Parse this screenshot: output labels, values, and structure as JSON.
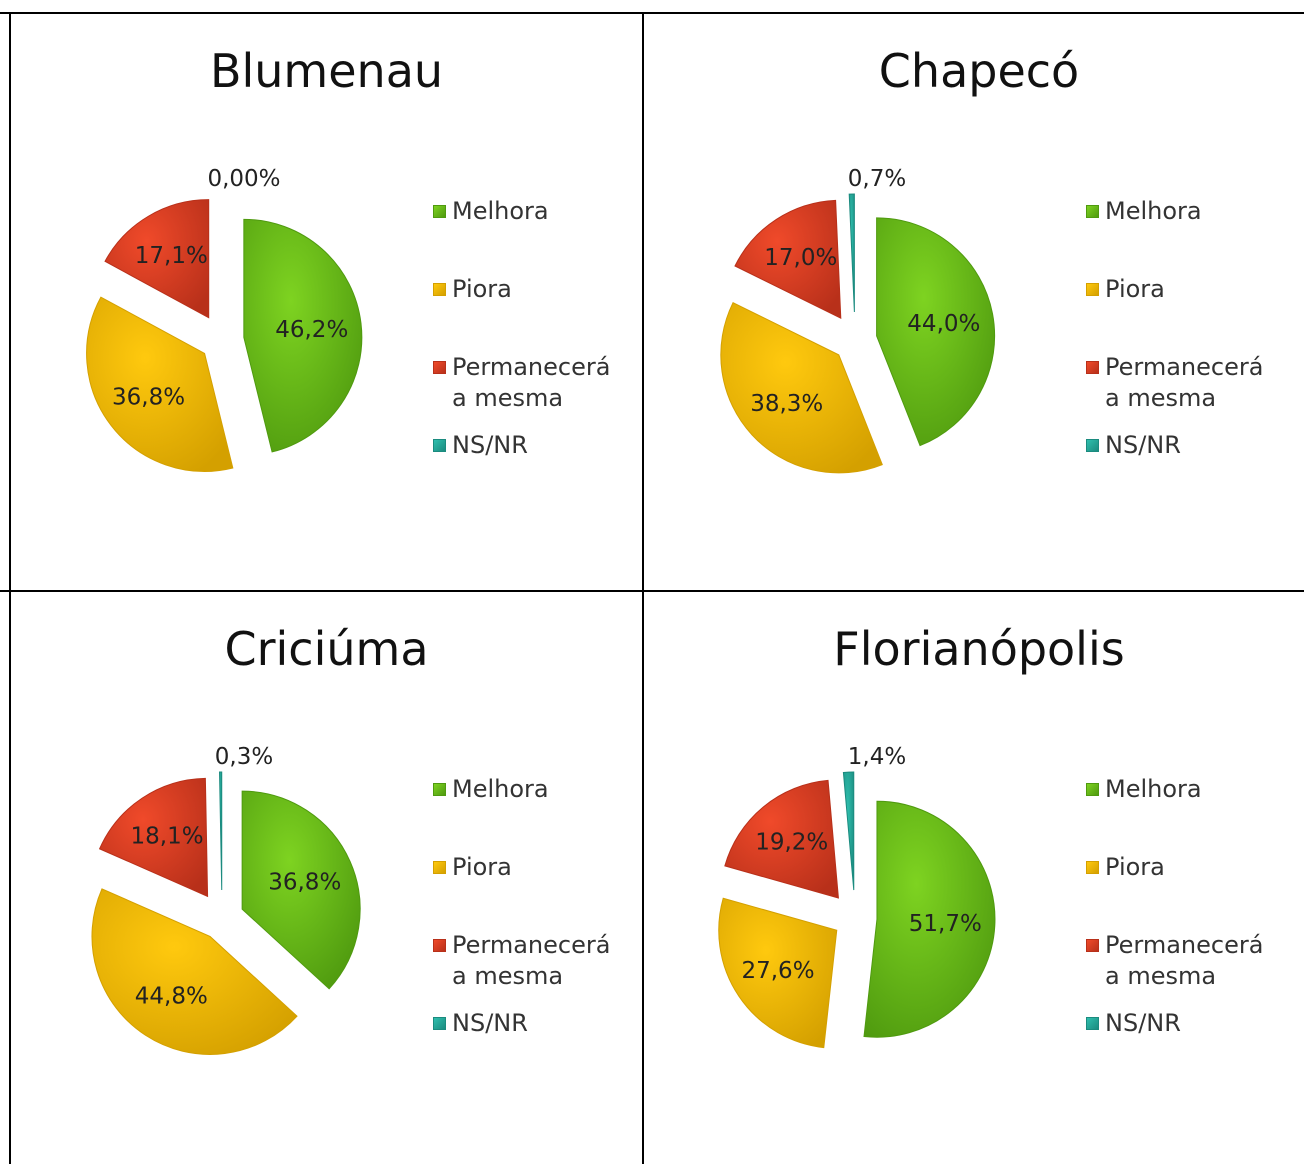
{
  "legend": {
    "items": [
      {
        "label_line1": "Melhora",
        "label_line2": "",
        "color": "#7ed321",
        "edge": "#4f9a0f"
      },
      {
        "label_line1": "Piora",
        "label_line2": "",
        "color": "#ffc90e",
        "edge": "#d4a000"
      },
      {
        "label_line1": "Permanecerá",
        "label_line2": "a mesma",
        "color": "#f04a2a",
        "edge": "#b8301a"
      },
      {
        "label_line1": "NS/NR",
        "label_line2": "",
        "color": "#2fbfae",
        "edge": "#1b8b7f"
      }
    ]
  },
  "chart_data": [
    {
      "type": "pie",
      "title": "Blumenau",
      "categories": [
        "Melhora",
        "Piora",
        "Permanecerá a mesma",
        "NS/NR"
      ],
      "values": [
        46.2,
        36.8,
        17.1,
        0.0
      ],
      "labels": [
        "46,2%",
        "36,8%",
        "17,1%",
        "0,00%"
      ],
      "legend_position": "right"
    },
    {
      "type": "pie",
      "title": "Chapecó",
      "categories": [
        "Melhora",
        "Piora",
        "Permanecerá a mesma",
        "NS/NR"
      ],
      "values": [
        44.0,
        38.3,
        17.0,
        0.7
      ],
      "labels": [
        "44,0%",
        "38,3%",
        "17,0%",
        "0,7%"
      ],
      "legend_position": "right"
    },
    {
      "type": "pie",
      "title": "Criciúma",
      "categories": [
        "Melhora",
        "Piora",
        "Permanecerá a mesma",
        "NS/NR"
      ],
      "values": [
        36.8,
        44.8,
        18.1,
        0.3
      ],
      "labels": [
        "36,8%",
        "44,8%",
        "18,1%",
        "0,3%"
      ],
      "legend_position": "right"
    },
    {
      "type": "pie",
      "title": "Florianópolis",
      "categories": [
        "Melhora",
        "Piora",
        "Permanecerá a mesma",
        "NS/NR"
      ],
      "values": [
        51.7,
        27.6,
        19.2,
        1.4
      ],
      "labels": [
        "51,7%",
        "27,6%",
        "19,2%",
        "1,4%"
      ],
      "legend_position": "right"
    }
  ]
}
